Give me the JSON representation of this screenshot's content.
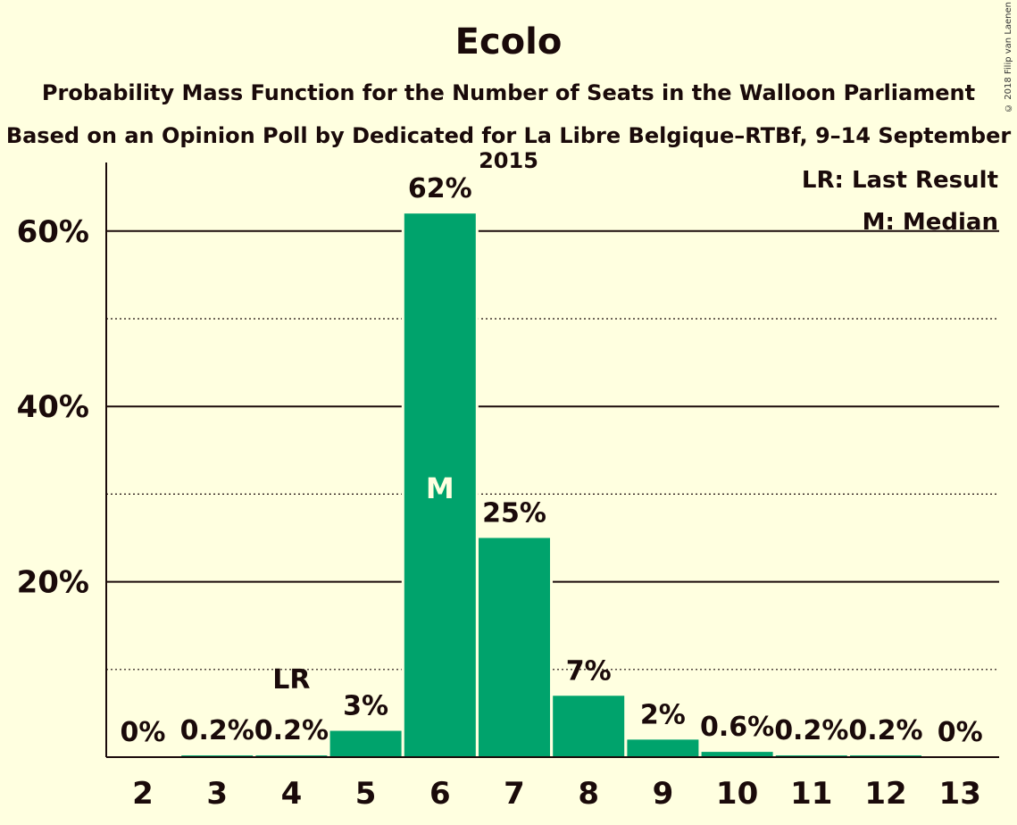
{
  "chart_data": {
    "type": "bar",
    "title": "Ecolo",
    "subtitle": "Probability Mass Function for the Number of Seats in the Walloon Parliament",
    "subtitle2": "Based on an Opinion Poll by Dedicated for La Libre Belgique–RTBf, 9–14 September 2015",
    "categories": [
      "2",
      "3",
      "4",
      "5",
      "6",
      "7",
      "8",
      "9",
      "10",
      "11",
      "12",
      "13"
    ],
    "values": [
      0,
      0.2,
      0.2,
      3,
      62,
      25,
      7,
      2,
      0.6,
      0.2,
      0.2,
      0
    ],
    "data_labels": [
      "0%",
      "0.2%",
      "0.2%",
      "3%",
      "62%",
      "25%",
      "7%",
      "2%",
      "0.6%",
      "0.2%",
      "0.2%",
      "0%"
    ],
    "ylim": [
      0,
      67
    ],
    "yticks": [
      20,
      40,
      60
    ],
    "ytick_labels": [
      "20%",
      "40%",
      "60%"
    ],
    "minor_gridlines": [
      10,
      30,
      50
    ],
    "bar_color": "#00A36C",
    "last_result_category": "4",
    "last_result_marker": "LR",
    "median_category": "6",
    "median_marker": "M",
    "legend": [
      "LR: Last Result",
      "M: Median"
    ],
    "legend_position": "top-right"
  },
  "credit": "© 2018 Filip van Laenen"
}
